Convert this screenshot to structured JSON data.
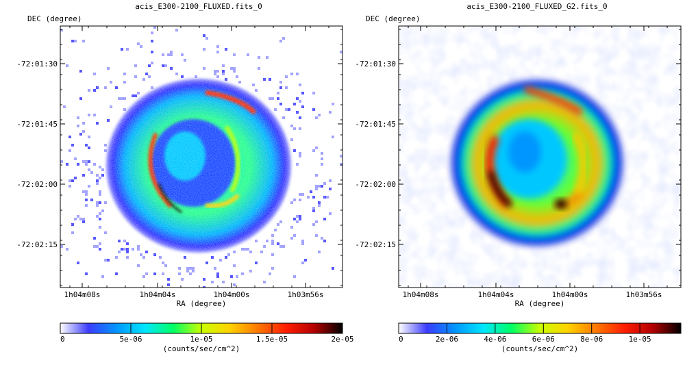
{
  "colors": {
    "frame": "#000000",
    "background": "#ffffff",
    "colormap": [
      "#ffffff",
      "#3c3cff",
      "#0096ff",
      "#00e6ff",
      "#00ff64",
      "#c8ff00",
      "#ffd200",
      "#ff7800",
      "#ff1e00",
      "#b40000",
      "#000000"
    ]
  },
  "panels": [
    {
      "title": "acis_E300-2100_FLUXED.fits_0",
      "y_axis_label": "DEC (degree)",
      "x_axis_label": "RA",
      "x_axis_unit": "(degree)",
      "y_ticks": [
        "-72:01:30",
        "-72:01:45",
        "-72:02:00",
        "-72:02:15"
      ],
      "x_ticks": [
        "1h04m08s",
        "1h04m04s",
        "1h04m00s",
        "1h03m56s"
      ],
      "colorbar_ticks": [
        "0",
        "5e-06",
        "1e-05",
        "1.5e-05",
        "2e-05"
      ],
      "colorbar_unit": "(counts/sec/cm^2)",
      "image_style": "raw counts map (pixelated)"
    },
    {
      "title": "acis_E300-2100_FLUXED_G2.fits_0",
      "y_axis_label": "DEC (degree)",
      "x_axis_label": "RA",
      "x_axis_unit": "(degree)",
      "y_ticks": [
        "-72:01:30",
        "-72:01:45",
        "-72:02:00",
        "-72:02:15"
      ],
      "x_ticks": [
        "1h04m08s",
        "1h04m04s",
        "1h04m00s",
        "1h03m56s"
      ],
      "colorbar_ticks": [
        "0",
        "2e-06",
        "4e-06",
        "6e-06",
        "8e-06",
        "1e-05"
      ],
      "colorbar_unit": "(counts/sec/cm^2)",
      "image_style": "Gaussian smoothed map"
    }
  ]
}
